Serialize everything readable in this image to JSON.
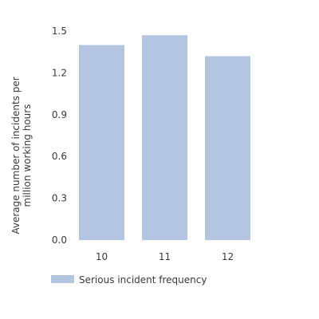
{
  "chart_data": {
    "type": "bar",
    "categories": [
      "10",
      "11",
      "12"
    ],
    "series": [
      {
        "name": "Serious incident frequency",
        "values": [
          1.4,
          1.47,
          1.32
        ],
        "color": "#b3c5e1"
      }
    ],
    "title": "",
    "xlabel": "",
    "ylabel": [
      "Average number of incidents per",
      "million working hours"
    ],
    "ylim": [
      0,
      1.5
    ],
    "yticks": [
      "0.0",
      "0.3",
      "0.6",
      "0.9",
      "1.2",
      "1.5"
    ],
    "grid": false,
    "legend": "bottom-left"
  }
}
